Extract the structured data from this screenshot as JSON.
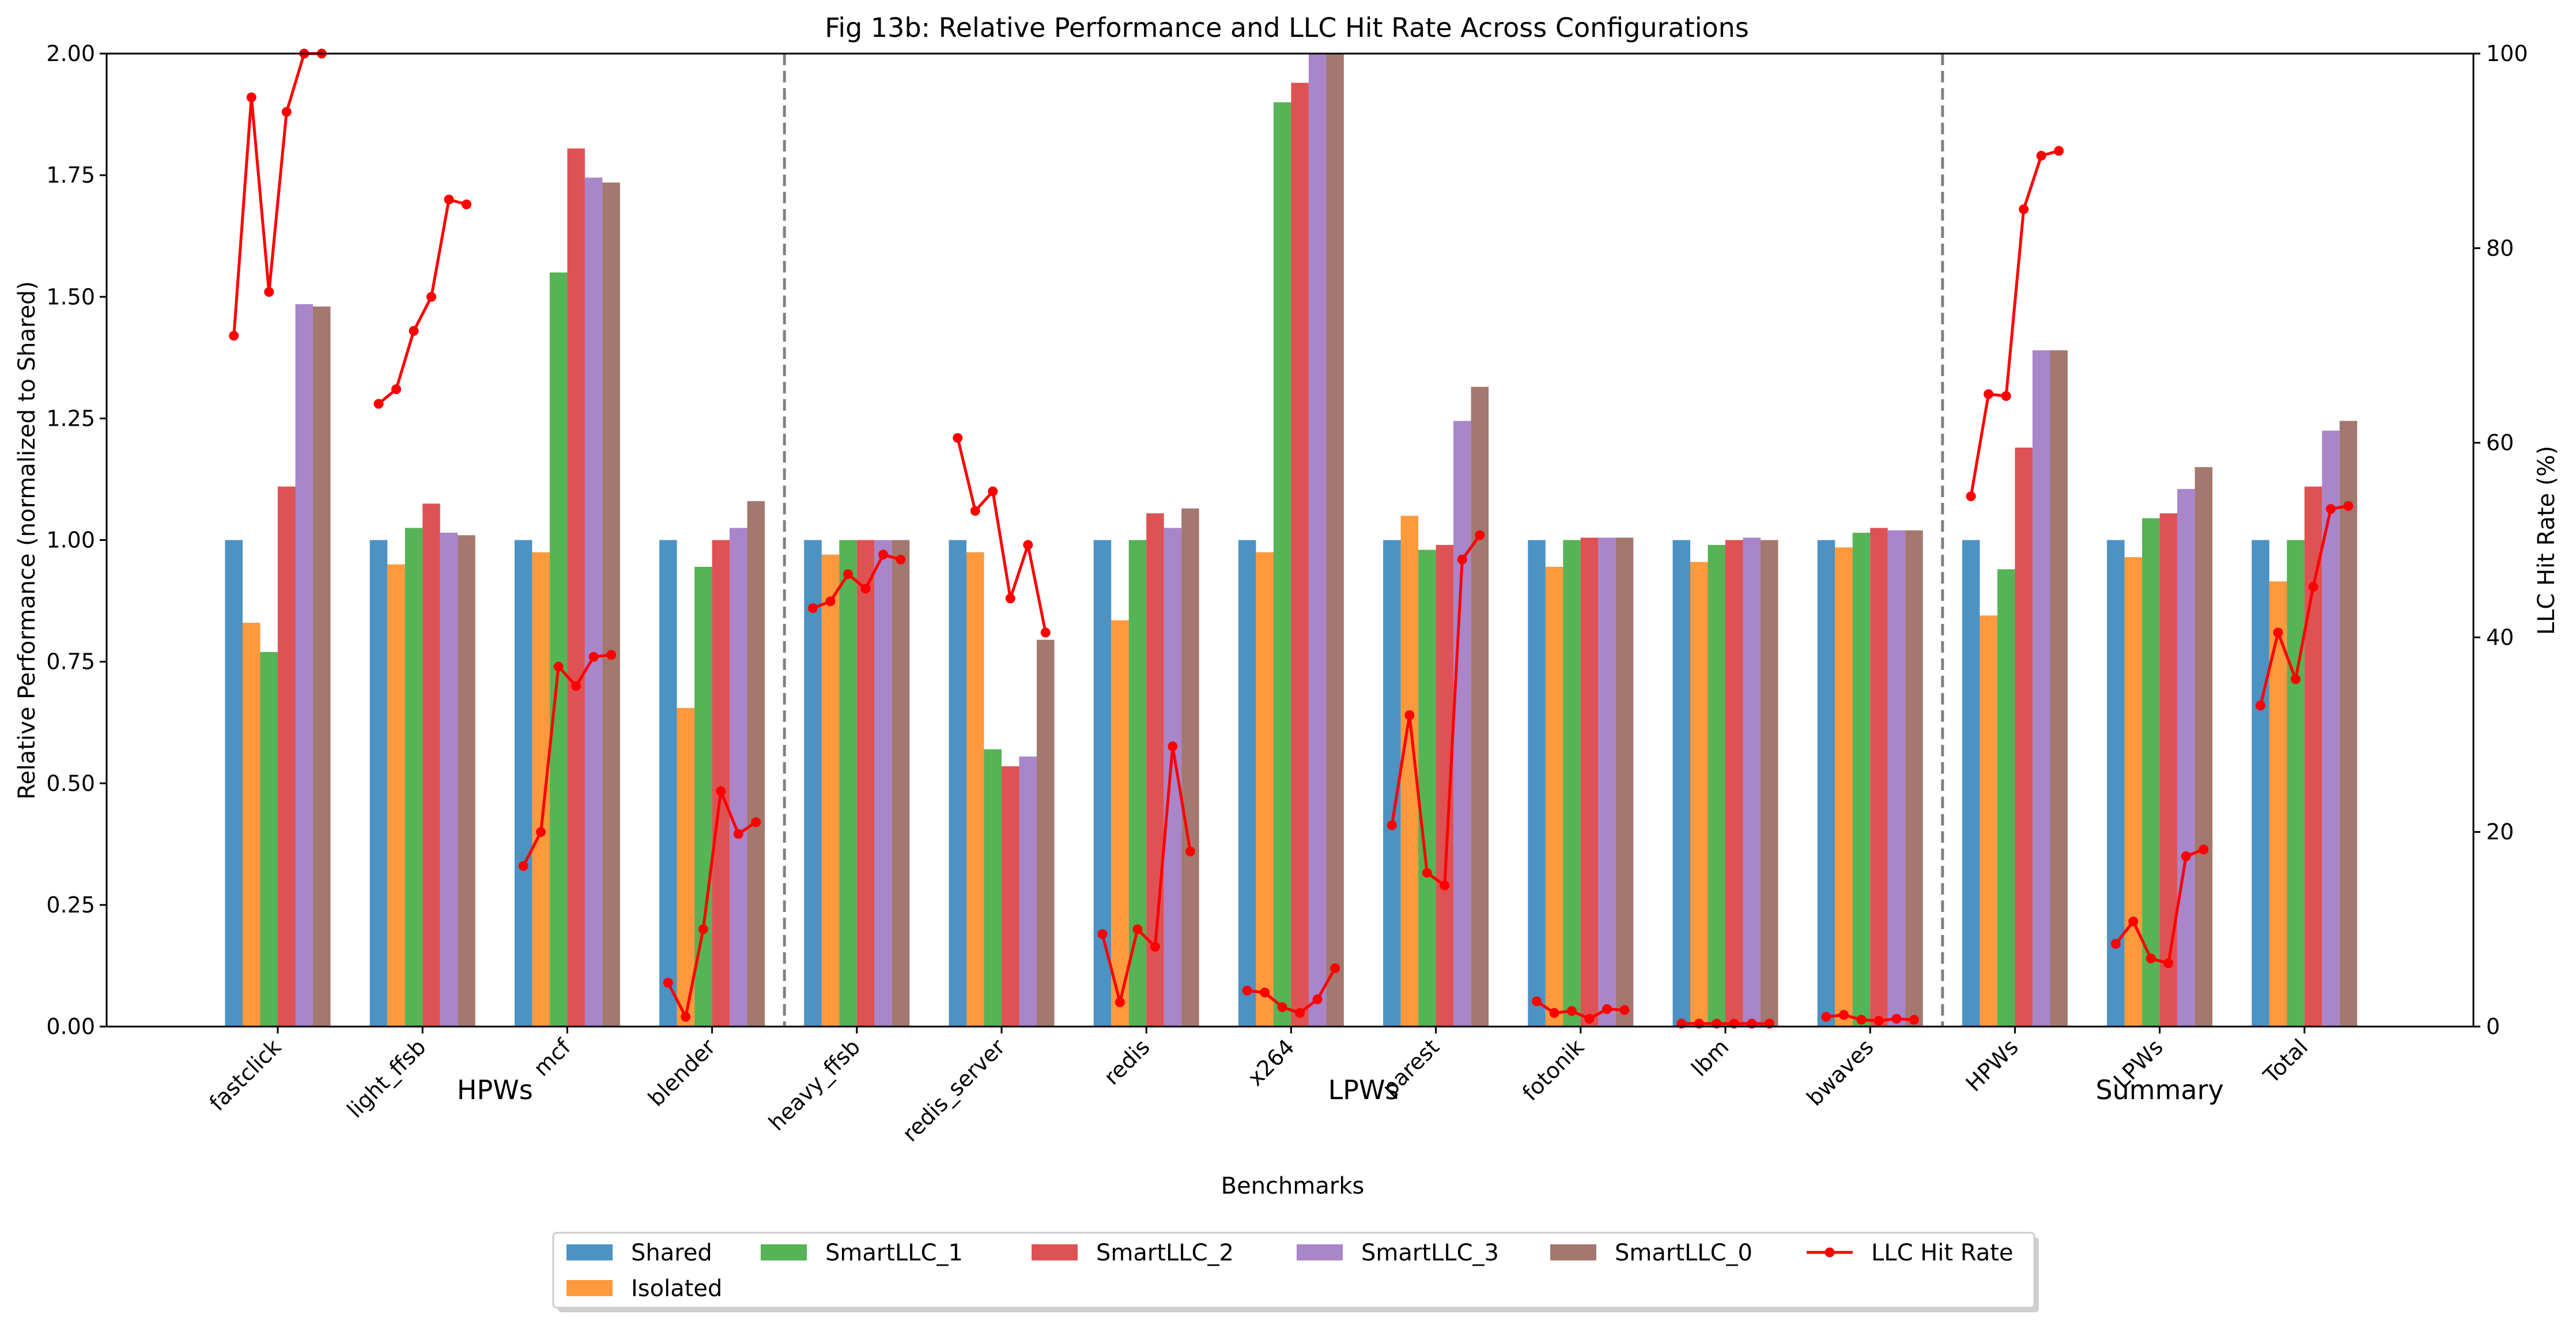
{
  "chart_data": {
    "type": "bar",
    "title": "Fig 13b: Relative Performance and LLC Hit Rate Across Configurations",
    "xlabel": "Benchmarks",
    "ylabel": "Relative Performance (normalized to Shared)",
    "y2label": "LLC Hit Rate (%)",
    "ylim": [
      0,
      2.0
    ],
    "y2lim": [
      0,
      100
    ],
    "yticks": [
      "0.00",
      "0.25",
      "0.50",
      "0.75",
      "1.00",
      "1.25",
      "1.50",
      "1.75",
      "2.00"
    ],
    "y2ticks": [
      "0",
      "20",
      "40",
      "60",
      "80",
      "100"
    ],
    "grid": false,
    "legend_position": "bottom-center",
    "categories": [
      "fastclick",
      "light_ffsb",
      "mcf",
      "blender",
      "heavy_ffsb",
      "redis_server",
      "redis",
      "x264",
      "parest",
      "fotonik",
      "lbm",
      "bwaves",
      "HPWs",
      "LPWs",
      "Total"
    ],
    "category_labels": [
      "fastclick",
      "light_ffsb",
      "mcf",
      "blender",
      "heavy_ffsb",
      "redis_server",
      "redis",
      "x264",
      "parest",
      "fotonik",
      "lbm",
      "bwaves",
      "HPWs",
      "LPWs",
      "Total"
    ],
    "group_labels": [
      "HPWs",
      "LPWs",
      "Summary"
    ],
    "series": [
      {
        "name": "Shared",
        "color": "#1f77b4",
        "values": [
          1.0,
          1.0,
          1.0,
          1.0,
          1.0,
          1.0,
          1.0,
          1.0,
          1.0,
          1.0,
          1.0,
          1.0,
          1.0,
          1.0,
          1.0
        ]
      },
      {
        "name": "Isolated",
        "color": "#ff7f0e",
        "values": [
          0.83,
          0.95,
          0.975,
          0.655,
          0.97,
          0.975,
          0.835,
          0.975,
          1.05,
          0.945,
          0.955,
          0.985,
          0.845,
          0.965,
          0.915
        ]
      },
      {
        "name": "SmartLLC_1",
        "color": "#2ca02c",
        "values": [
          0.77,
          1.025,
          1.55,
          0.945,
          1.0,
          0.57,
          1.0,
          1.9,
          0.98,
          1.0,
          0.99,
          1.015,
          0.94,
          1.045,
          1.0
        ]
      },
      {
        "name": "SmartLLC_2",
        "color": "#d62728",
        "values": [
          1.11,
          1.075,
          1.805,
          1.0,
          1.0,
          0.535,
          1.055,
          1.94,
          0.99,
          1.005,
          1.0,
          1.025,
          1.19,
          1.055,
          1.11
        ]
      },
      {
        "name": "SmartLLC_3",
        "color": "#9467bd",
        "values": [
          1.485,
          1.015,
          1.745,
          1.025,
          1.0,
          0.555,
          1.025,
          2.0,
          1.245,
          1.005,
          1.005,
          1.02,
          1.39,
          1.105,
          1.225
        ]
      },
      {
        "name": "SmartLLC_0",
        "color": "#8c564b",
        "values": [
          1.48,
          1.01,
          1.735,
          1.08,
          1.0,
          0.795,
          1.065,
          2.0,
          1.315,
          1.005,
          1.0,
          1.02,
          1.39,
          1.15,
          1.245
        ]
      }
    ],
    "hit_rate": {
      "name": "LLC Hit Rate",
      "color": "#ff0000",
      "values": [
        [
          71,
          95.5,
          75.5,
          94,
          100,
          100
        ],
        [
          64,
          65.5,
          71.5,
          75,
          85,
          84.5
        ],
        [
          16.5,
          20,
          37,
          35,
          38,
          38.2
        ],
        [
          4.5,
          1,
          10,
          24.2,
          19.8,
          21
        ],
        [
          43,
          43.7,
          46.5,
          45,
          48.5,
          48
        ],
        [
          60.5,
          53,
          55,
          44,
          49.5,
          40.5
        ],
        [
          9.5,
          2.5,
          10,
          8.2,
          28.8,
          18
        ],
        [
          3.7,
          3.5,
          2,
          1.4,
          2.8,
          6
        ],
        [
          20.7,
          32,
          15.8,
          14.5,
          48,
          50.5
        ],
        [
          2.6,
          1.4,
          1.6,
          0.8,
          1.8,
          1.7
        ],
        [
          0.3,
          0.3,
          0.3,
          0.3,
          0.3,
          0.3
        ],
        [
          1,
          1.2,
          0.7,
          0.6,
          0.8,
          0.7
        ],
        [
          54.5,
          65,
          64.8,
          84,
          89.5,
          90
        ],
        [
          8.5,
          10.8,
          7,
          6.5,
          17.5,
          18.2
        ],
        [
          33,
          40.5,
          35.7,
          45.2,
          53.2,
          53.5
        ]
      ]
    }
  }
}
